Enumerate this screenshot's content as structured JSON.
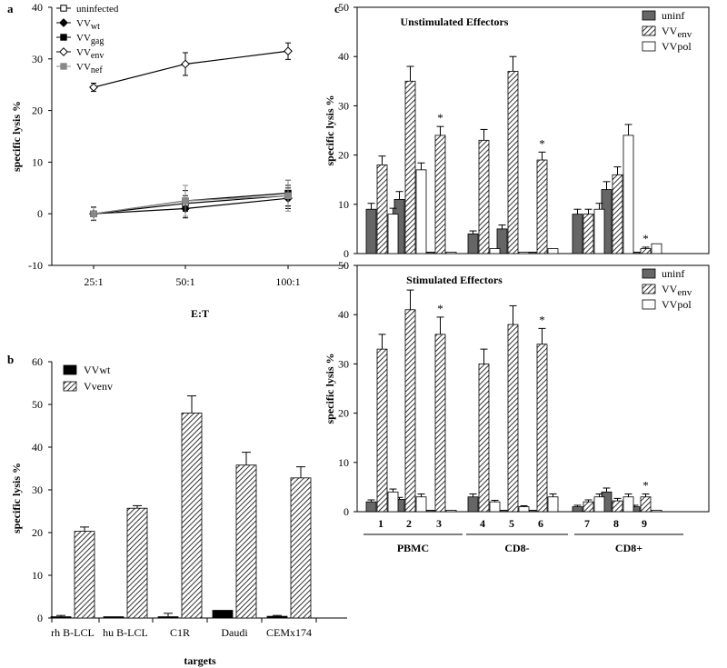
{
  "chart_data": [
    {
      "id": "a",
      "panel_label": "a",
      "type": "line",
      "xlabel": "E:T",
      "ylabel": "specific lysis %",
      "categories": [
        "25:1",
        "50:1",
        "100:1"
      ],
      "ylim": [
        -10,
        40
      ],
      "yticks": [
        "-10",
        "0",
        "10",
        "20",
        "30",
        "40"
      ],
      "series": [
        {
          "name": "uninfected",
          "marker": "square-open",
          "color": "#000000",
          "values": [
            0,
            2,
            3.5
          ],
          "errors": [
            1.2,
            1.5,
            2
          ]
        },
        {
          "name": "VVwt",
          "marker": "diamond-filled",
          "color": "#000000",
          "values": [
            0,
            1,
            3
          ],
          "errors": [
            1.2,
            1.8,
            2
          ]
        },
        {
          "name": "VVgag",
          "marker": "square-filled",
          "color": "#000000",
          "values": [
            0,
            2.5,
            4
          ],
          "errors": [
            1.3,
            2,
            2.5
          ]
        },
        {
          "name": "VVenv",
          "marker": "diamond-open",
          "color": "#000000",
          "values": [
            24.5,
            29,
            31.5
          ],
          "errors": [
            0.8,
            2.2,
            1.6
          ]
        },
        {
          "name": "VVnef",
          "marker": "square-filled",
          "color": "#888888",
          "values": [
            0,
            2.5,
            3.5
          ],
          "errors": [
            1.2,
            3,
            3
          ]
        }
      ]
    },
    {
      "id": "b",
      "panel_label": "b",
      "type": "bar",
      "xlabel": "targets",
      "ylabel": "specific lysis %",
      "categories": [
        "rh B-LCL",
        "hu B-LCL",
        "C1R",
        "Daudi",
        "CEMx174"
      ],
      "ylim": [
        0,
        60
      ],
      "yticks": [
        "0",
        "10",
        "20",
        "30",
        "40",
        "50",
        "60"
      ],
      "series": [
        {
          "name": "VVwt",
          "fill": "solid",
          "values": [
            0.3,
            0.3,
            0.3,
            1.8,
            0.4
          ],
          "errors": [
            0.3,
            0,
            0.8,
            0,
            0.2
          ]
        },
        {
          "name": "Vvenv",
          "fill": "hatch",
          "values": [
            20.3,
            25.7,
            48,
            35.8,
            32.8
          ],
          "errors": [
            1,
            0.6,
            4,
            3,
            2.6
          ]
        }
      ]
    },
    {
      "id": "c-top",
      "panel_label": "c",
      "type": "bar",
      "title": "Unstimulated Effectors",
      "ylabel": "specific lysis %",
      "categories": [
        "1",
        "2",
        "3",
        "4",
        "5",
        "6",
        "7",
        "8",
        "9"
      ],
      "ylim": [
        0,
        50
      ],
      "yticks": [
        "0",
        "10",
        "20",
        "30",
        "40",
        "50"
      ],
      "series": [
        {
          "name": "uninf",
          "fill": "gray",
          "values": [
            9,
            11,
            0.3,
            4,
            5,
            0.3,
            8,
            13,
            0.3
          ],
          "errors": [
            1.2,
            1.6,
            0,
            0.6,
            0.8,
            0,
            1,
            1.6,
            0
          ]
        },
        {
          "name": "VVenv",
          "fill": "hatch",
          "values": [
            18,
            35,
            24,
            23,
            37,
            19,
            8,
            16,
            1
          ],
          "errors": [
            1.8,
            3,
            1.8,
            2.2,
            3,
            1.6,
            1,
            1.6,
            0.3
          ]
        },
        {
          "name": "VVpol",
          "fill": "white",
          "values": [
            8,
            17,
            0.3,
            1,
            0.3,
            1,
            9,
            24,
            2
          ],
          "errors": [
            1.2,
            1.4,
            0,
            0,
            0,
            0,
            1.2,
            2.2,
            0
          ]
        }
      ],
      "asterisks": [
        "3",
        "6",
        "9"
      ]
    },
    {
      "id": "c-bottom",
      "type": "bar",
      "title": "Stimulated Effectors",
      "ylabel": "specific lysis %",
      "categories": [
        "1",
        "2",
        "3",
        "4",
        "5",
        "6",
        "7",
        "8",
        "9"
      ],
      "groups": [
        {
          "label": "PBMC",
          "members": [
            "1",
            "2",
            "3"
          ]
        },
        {
          "label": "CD8-",
          "members": [
            "4",
            "5",
            "6"
          ]
        },
        {
          "label": "CD8+",
          "members": [
            "7",
            "8",
            "9"
          ]
        }
      ],
      "ylim": [
        0,
        50
      ],
      "yticks": [
        "0",
        "10",
        "20",
        "30",
        "40",
        "50"
      ],
      "series": [
        {
          "name": "uninf",
          "fill": "gray",
          "values": [
            2,
            2.5,
            0.3,
            3,
            0.3,
            0.3,
            1,
            4,
            1
          ],
          "errors": [
            0.4,
            0.4,
            0,
            0.6,
            0,
            0,
            0.3,
            0.8,
            0.3
          ]
        },
        {
          "name": "VVenv",
          "fill": "hatch",
          "values": [
            33,
            41,
            36,
            30,
            38,
            34,
            2,
            2.2,
            3
          ],
          "errors": [
            3,
            4,
            3.5,
            3,
            3.8,
            3.2,
            0.4,
            0.5,
            0.6
          ]
        },
        {
          "name": "VVpol",
          "fill": "white",
          "values": [
            4,
            3,
            0.3,
            2,
            1,
            3,
            3,
            3,
            0.3
          ],
          "errors": [
            0.6,
            0.6,
            0,
            0.3,
            0.2,
            0.6,
            0.6,
            0.6,
            0
          ]
        }
      ],
      "asterisks": [
        "3",
        "6",
        "9"
      ]
    }
  ]
}
